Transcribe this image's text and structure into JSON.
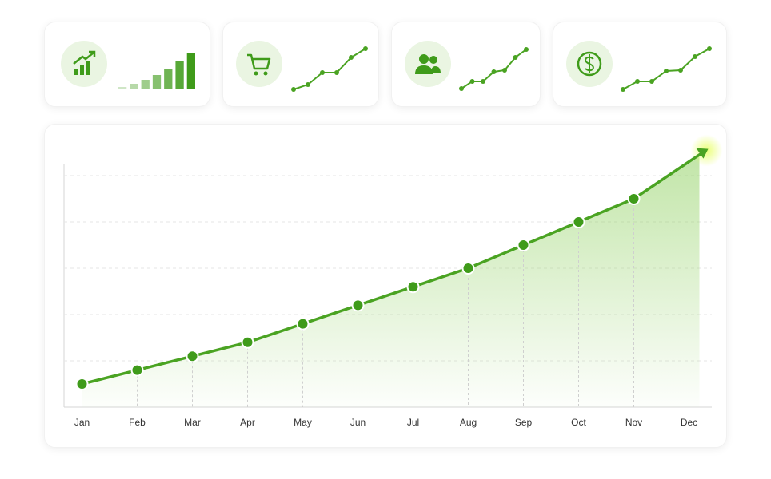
{
  "chart_data": [
    {
      "type": "bar",
      "values": [
        2,
        6,
        11,
        17,
        25,
        34,
        44
      ],
      "ylim": [
        0,
        44
      ],
      "color": "#3f9b1a"
    },
    {
      "type": "line",
      "values": [
        0,
        6,
        21,
        21,
        40,
        51
      ],
      "ylim": [
        0,
        51
      ],
      "color": "#4aa322"
    },
    {
      "type": "line",
      "values": [
        0,
        9,
        9,
        21,
        23,
        39,
        49
      ],
      "ylim": [
        0,
        49
      ],
      "color": "#4aa322"
    },
    {
      "type": "line",
      "values": [
        0,
        10,
        10,
        23,
        24,
        41,
        51
      ],
      "ylim": [
        0,
        51
      ],
      "color": "#4aa322"
    },
    {
      "type": "area",
      "categories": [
        "Jan",
        "Feb",
        "Mar",
        "Apr",
        "May",
        "Jun",
        "Jul",
        "Aug",
        "Sep",
        "Oct",
        "Nov",
        "Dec"
      ],
      "values": [
        0.5,
        0.8,
        1.1,
        1.4,
        1.8,
        2.2,
        2.6,
        3.0,
        3.5,
        4.0,
        4.5,
        5.3
      ],
      "ylim": [
        0,
        5.3
      ],
      "grid_lines": [
        1,
        2,
        3,
        4,
        5
      ],
      "color": "#4aa322"
    }
  ]
}
